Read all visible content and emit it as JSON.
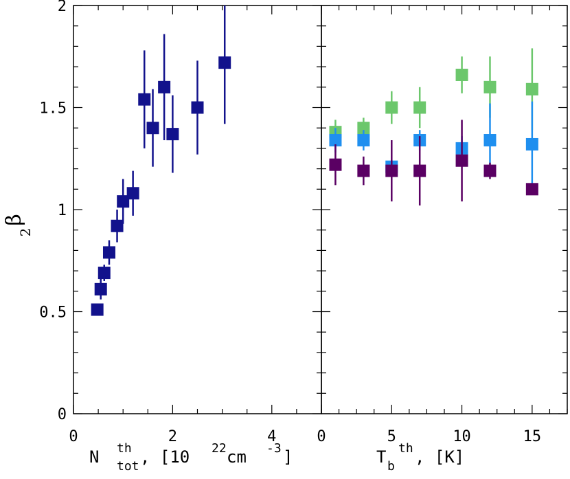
{
  "chart_data": [
    {
      "type": "scatter",
      "panel": "left",
      "xlabel": {
        "main": "N",
        "sup": "th",
        "sub": "tot",
        "rest": ", [10",
        "exp1": "22",
        "mid": " cm",
        "exp2": "-3",
        "end": "]"
      },
      "ylabel": {
        "greek": "β",
        "sub": "2"
      },
      "xlim": [
        0,
        5
      ],
      "ylim": [
        0,
        2
      ],
      "xticks": [
        0,
        2,
        4
      ],
      "xtick_labels": [
        "0",
        "2",
        "4"
      ],
      "yticks": [
        0,
        0.5,
        1,
        1.5,
        2
      ],
      "ytick_labels": [
        "0",
        "0.5",
        "1",
        "1.5",
        "2"
      ],
      "series": [
        {
          "color": "#12128c",
          "points": [
            {
              "x": 0.48,
              "y": 0.51,
              "err": 0.02
            },
            {
              "x": 0.55,
              "y": 0.61,
              "err": 0.05
            },
            {
              "x": 0.62,
              "y": 0.69,
              "err": 0.04
            },
            {
              "x": 0.72,
              "y": 0.79,
              "err": 0.06
            },
            {
              "x": 0.88,
              "y": 0.92,
              "err": 0.08
            },
            {
              "x": 1.0,
              "y": 1.04,
              "err": 0.11
            },
            {
              "x": 1.2,
              "y": 1.08,
              "err": 0.11
            },
            {
              "x": 1.43,
              "y": 1.54,
              "err": 0.24
            },
            {
              "x": 1.6,
              "y": 1.4,
              "err": 0.19
            },
            {
              "x": 1.83,
              "y": 1.6,
              "err": 0.26
            },
            {
              "x": 2.0,
              "y": 1.37,
              "err": 0.19
            },
            {
              "x": 2.5,
              "y": 1.5,
              "err": 0.23
            },
            {
              "x": 3.05,
              "y": 1.72,
              "err": 0.3
            }
          ]
        }
      ]
    },
    {
      "type": "scatter",
      "panel": "right",
      "xlabel": {
        "main": "T",
        "sub": "b",
        "sup": "th",
        "rest": ", [K]"
      },
      "xlim": [
        0,
        17.5
      ],
      "ylim": [
        0,
        2
      ],
      "xticks": [
        0,
        5,
        10,
        15
      ],
      "xtick_labels": [
        "0",
        "5",
        "10",
        "15"
      ],
      "series": [
        {
          "color": "#6cc76c",
          "points": [
            {
              "x": 1,
              "y": 1.38,
              "err": 0.06
            },
            {
              "x": 3,
              "y": 1.4,
              "err": 0.05
            },
            {
              "x": 5,
              "y": 1.5,
              "err": 0.08
            },
            {
              "x": 7,
              "y": 1.5,
              "err": 0.1
            },
            {
              "x": 10,
              "y": 1.66,
              "err": 0.09
            },
            {
              "x": 12,
              "y": 1.6,
              "err": 0.15
            },
            {
              "x": 15,
              "y": 1.59,
              "err": 0.2
            }
          ]
        },
        {
          "color": "#1f8fef",
          "points": [
            {
              "x": 1,
              "y": 1.34,
              "err": 0.06
            },
            {
              "x": 3,
              "y": 1.34,
              "err": 0.05
            },
            {
              "x": 5,
              "y": 1.21,
              "err": 0.03
            },
            {
              "x": 7,
              "y": 1.34,
              "err": 0.05
            },
            {
              "x": 10,
              "y": 1.3,
              "err": 0.06
            },
            {
              "x": 12,
              "y": 1.34,
              "err": 0.18
            },
            {
              "x": 15,
              "y": 1.32,
              "err": 0.21
            }
          ]
        },
        {
          "color": "#5a0063",
          "points": [
            {
              "x": 1,
              "y": 1.22,
              "err": 0.1
            },
            {
              "x": 3,
              "y": 1.19,
              "err": 0.07
            },
            {
              "x": 5,
              "y": 1.19,
              "err": 0.15
            },
            {
              "x": 7,
              "y": 1.19,
              "err": 0.17
            },
            {
              "x": 10,
              "y": 1.24,
              "err": 0.2
            },
            {
              "x": 12,
              "y": 1.19,
              "err": 0.04
            },
            {
              "x": 15,
              "y": 1.1,
              "err": 0.0
            }
          ]
        }
      ]
    }
  ]
}
